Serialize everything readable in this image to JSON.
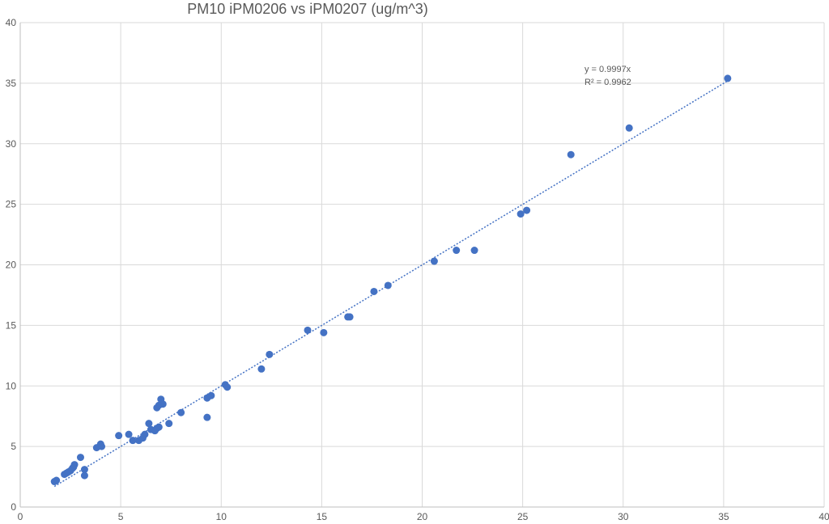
{
  "chart_data": {
    "type": "scatter",
    "title": "PM10 iPM0206 vs iPM0207 (ug/m^3)",
    "xlabel": "",
    "ylabel": "",
    "xlim": [
      0,
      40
    ],
    "ylim": [
      0,
      40
    ],
    "x_ticks": [
      0,
      5,
      10,
      15,
      20,
      25,
      30,
      35,
      40
    ],
    "y_ticks": [
      0,
      5,
      10,
      15,
      20,
      25,
      30,
      35,
      40
    ],
    "x_tick_labels": [
      "0",
      "5",
      "10",
      "15",
      "20",
      "25",
      "30",
      "35",
      "40"
    ],
    "y_tick_labels": [
      "0",
      "5",
      "10",
      "15",
      "20",
      "25",
      "30",
      "35",
      "40"
    ],
    "grid": true,
    "legend": "none",
    "point_color": "#4472C4",
    "trendline_color": "#4472C4",
    "points": [
      {
        "x": 1.7,
        "y": 2.1
      },
      {
        "x": 1.8,
        "y": 2.2
      },
      {
        "x": 2.2,
        "y": 2.7
      },
      {
        "x": 2.3,
        "y": 2.8
      },
      {
        "x": 2.4,
        "y": 2.9
      },
      {
        "x": 2.5,
        "y": 3.0
      },
      {
        "x": 2.6,
        "y": 3.2
      },
      {
        "x": 2.65,
        "y": 3.3
      },
      {
        "x": 2.7,
        "y": 3.5
      },
      {
        "x": 3.0,
        "y": 4.1
      },
      {
        "x": 3.2,
        "y": 3.1
      },
      {
        "x": 3.2,
        "y": 2.6
      },
      {
        "x": 3.8,
        "y": 4.9
      },
      {
        "x": 4.0,
        "y": 5.2
      },
      {
        "x": 4.05,
        "y": 5.0
      },
      {
        "x": 4.9,
        "y": 5.9
      },
      {
        "x": 5.4,
        "y": 6.0
      },
      {
        "x": 5.6,
        "y": 5.5
      },
      {
        "x": 5.9,
        "y": 5.5
      },
      {
        "x": 6.1,
        "y": 5.7
      },
      {
        "x": 6.2,
        "y": 6.0
      },
      {
        "x": 6.4,
        "y": 6.9
      },
      {
        "x": 6.5,
        "y": 6.4
      },
      {
        "x": 6.7,
        "y": 6.3
      },
      {
        "x": 6.8,
        "y": 6.5
      },
      {
        "x": 6.9,
        "y": 6.6
      },
      {
        "x": 6.8,
        "y": 8.2
      },
      {
        "x": 6.9,
        "y": 8.4
      },
      {
        "x": 7.0,
        "y": 8.9
      },
      {
        "x": 7.1,
        "y": 8.5
      },
      {
        "x": 7.4,
        "y": 6.9
      },
      {
        "x": 8.0,
        "y": 7.8
      },
      {
        "x": 9.3,
        "y": 7.4
      },
      {
        "x": 9.3,
        "y": 9.0
      },
      {
        "x": 9.5,
        "y": 9.2
      },
      {
        "x": 10.2,
        "y": 10.1
      },
      {
        "x": 10.3,
        "y": 9.9
      },
      {
        "x": 12.0,
        "y": 11.4
      },
      {
        "x": 12.4,
        "y": 12.6
      },
      {
        "x": 14.3,
        "y": 14.6
      },
      {
        "x": 15.1,
        "y": 14.4
      },
      {
        "x": 16.3,
        "y": 15.7
      },
      {
        "x": 16.4,
        "y": 15.7
      },
      {
        "x": 17.6,
        "y": 17.8
      },
      {
        "x": 18.3,
        "y": 18.3
      },
      {
        "x": 20.6,
        "y": 20.3
      },
      {
        "x": 21.7,
        "y": 21.2
      },
      {
        "x": 22.6,
        "y": 21.2
      },
      {
        "x": 24.9,
        "y": 24.2
      },
      {
        "x": 25.2,
        "y": 24.5
      },
      {
        "x": 27.4,
        "y": 29.1
      },
      {
        "x": 30.3,
        "y": 31.3
      },
      {
        "x": 35.2,
        "y": 35.4
      }
    ],
    "trendline": {
      "type": "linear-through-origin",
      "slope": 0.9997,
      "x_range": [
        1.7,
        35.2
      ],
      "equation": "y = 0.9997x",
      "r_squared": "R² = 0.9962"
    }
  }
}
